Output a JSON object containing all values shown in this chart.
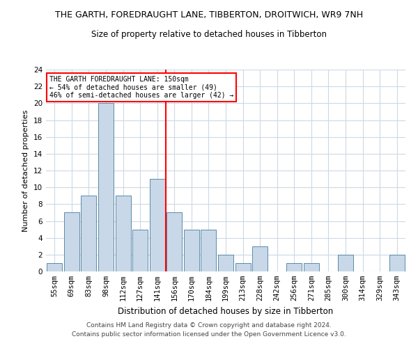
{
  "title": "THE GARTH, FOREDRAUGHT LANE, TIBBERTON, DROITWICH, WR9 7NH",
  "subtitle": "Size of property relative to detached houses in Tibberton",
  "xlabel": "Distribution of detached houses by size in Tibberton",
  "ylabel": "Number of detached properties",
  "categories": [
    "55sqm",
    "69sqm",
    "83sqm",
    "98sqm",
    "112sqm",
    "127sqm",
    "141sqm",
    "156sqm",
    "170sqm",
    "184sqm",
    "199sqm",
    "213sqm",
    "228sqm",
    "242sqm",
    "256sqm",
    "271sqm",
    "285sqm",
    "300sqm",
    "314sqm",
    "329sqm",
    "343sqm"
  ],
  "values": [
    1,
    7,
    9,
    20,
    9,
    5,
    11,
    7,
    5,
    5,
    2,
    1,
    3,
    0,
    1,
    1,
    0,
    2,
    0,
    0,
    2
  ],
  "bar_color": "#c8d8e8",
  "bar_edge_color": "#5a8aaa",
  "vline_x_index": 7,
  "vline_color": "red",
  "ylim": [
    0,
    24
  ],
  "yticks": [
    0,
    2,
    4,
    6,
    8,
    10,
    12,
    14,
    16,
    18,
    20,
    22,
    24
  ],
  "annotation_text": "THE GARTH FOREDRAUGHT LANE: 150sqm\n← 54% of detached houses are smaller (49)\n46% of semi-detached houses are larger (42) →",
  "annotation_box_color": "white",
  "annotation_box_edge": "red",
  "footer1": "Contains HM Land Registry data © Crown copyright and database right 2024.",
  "footer2": "Contains public sector information licensed under the Open Government Licence v3.0.",
  "bg_color": "white",
  "grid_color": "#ccd9e5",
  "title_fontsize": 9,
  "subtitle_fontsize": 8.5,
  "ylabel_fontsize": 8,
  "xlabel_fontsize": 8.5,
  "tick_fontsize": 7.5,
  "annot_fontsize": 7,
  "footer_fontsize": 6.5
}
